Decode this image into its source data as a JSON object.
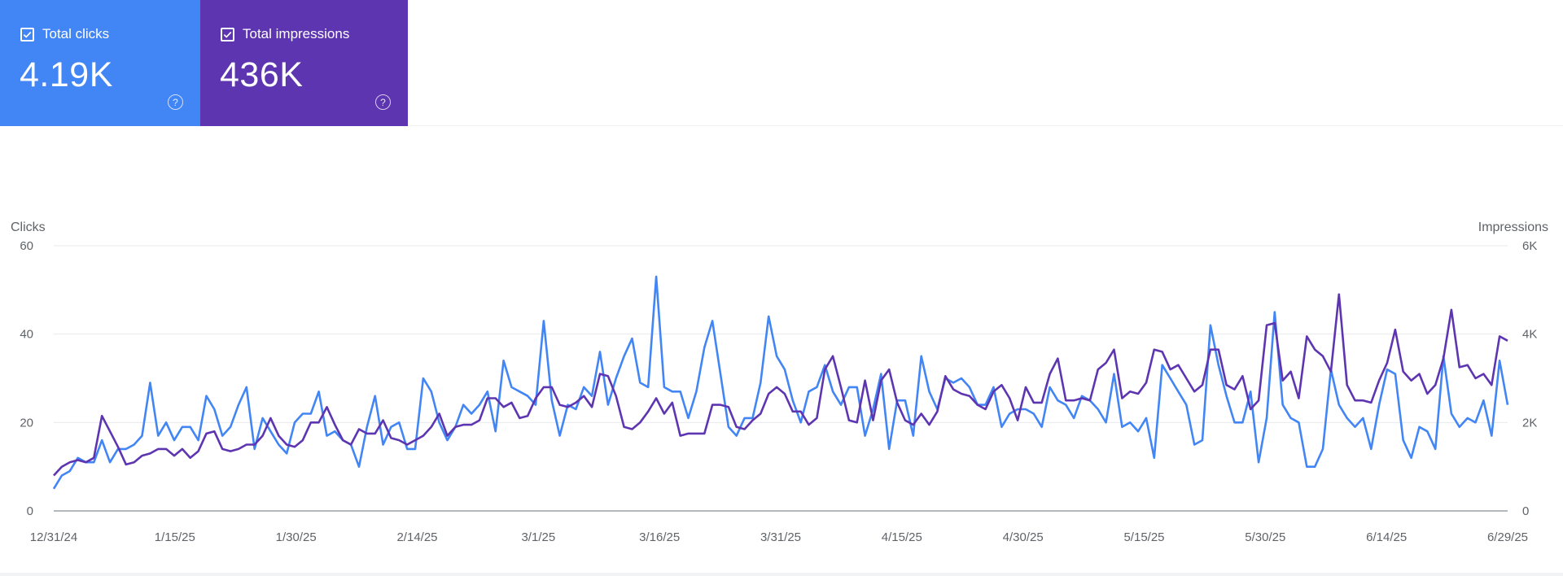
{
  "cards": {
    "clicks": {
      "label": "Total clicks",
      "value": "4.19K",
      "color": "#4285f4",
      "help_icon": "help-circle-icon"
    },
    "impressions": {
      "label": "Total impressions",
      "value": "436K",
      "color": "#5e35b1",
      "help_icon": "help-circle-icon"
    }
  },
  "chart_data": {
    "type": "line",
    "title": "",
    "xlabel": "",
    "ylabel_left": "Clicks",
    "ylabel_right": "Impressions",
    "y_left_ticks": [
      "0",
      "20",
      "40",
      "60"
    ],
    "y_right_ticks": [
      "0",
      "2K",
      "4K",
      "6K"
    ],
    "ylim_left": [
      0,
      60
    ],
    "ylim_right": [
      0,
      6000
    ],
    "x_tick_labels": [
      "12/31/24",
      "1/15/25",
      "1/30/25",
      "2/14/25",
      "3/1/25",
      "3/16/25",
      "3/31/25",
      "4/15/25",
      "4/30/25",
      "5/15/25",
      "5/30/25",
      "6/14/25",
      "6/29/25"
    ],
    "x_start": "12/31/24",
    "x_end": "6/29/25",
    "grid": true,
    "series": [
      {
        "name": "Clicks",
        "axis": "left",
        "color": "#4285f4",
        "values": [
          5,
          8,
          9,
          12,
          11,
          11,
          16,
          11,
          14,
          14,
          15,
          17,
          29,
          17,
          20,
          16,
          19,
          19,
          16,
          26,
          23,
          17,
          19,
          24,
          28,
          14,
          21,
          18,
          15,
          13,
          20,
          22,
          22,
          27,
          17,
          18,
          16,
          15,
          10,
          19,
          26,
          15,
          19,
          20,
          14,
          14,
          30,
          27,
          20,
          16,
          19,
          24,
          22,
          24,
          27,
          18,
          34,
          28,
          27,
          26,
          24,
          43,
          25,
          17,
          24,
          23,
          28,
          26,
          36,
          24,
          30,
          35,
          39,
          29,
          28,
          53,
          28,
          27,
          27,
          21,
          27,
          37,
          43,
          31,
          19,
          17,
          21,
          21,
          29,
          44,
          35,
          32,
          25,
          20,
          27,
          28,
          33,
          27,
          24,
          28,
          28,
          17,
          23,
          31,
          14,
          25,
          25,
          17,
          35,
          27,
          23,
          30,
          29,
          30,
          28,
          24,
          24,
          28,
          19,
          22,
          23,
          23,
          22,
          19,
          28,
          25,
          24,
          21,
          26,
          25,
          23,
          20,
          31,
          19,
          20,
          18,
          21,
          12,
          33,
          30,
          27,
          24,
          15,
          16,
          42,
          33,
          26,
          20,
          20,
          27,
          11,
          21,
          45,
          24,
          21,
          20,
          10,
          10,
          14,
          32,
          24,
          21,
          19,
          21,
          14,
          24,
          32,
          31,
          16,
          12,
          19,
          18,
          14,
          35,
          22,
          19,
          21,
          20,
          25,
          17,
          34,
          24
        ]
      },
      {
        "name": "Impressions",
        "axis": "right",
        "color": "#5e35b1",
        "values": [
          800,
          1000,
          1100,
          1150,
          1100,
          1200,
          2150,
          1800,
          1450,
          1050,
          1100,
          1250,
          1300,
          1400,
          1400,
          1250,
          1400,
          1200,
          1350,
          1750,
          1800,
          1400,
          1350,
          1400,
          1500,
          1500,
          1700,
          2100,
          1700,
          1500,
          1450,
          1600,
          2000,
          2000,
          2350,
          1950,
          1600,
          1500,
          1850,
          1750,
          1750,
          2050,
          1650,
          1600,
          1500,
          1600,
          1700,
          1900,
          2200,
          1700,
          1900,
          1950,
          1950,
          2050,
          2550,
          2550,
          2350,
          2450,
          2100,
          2150,
          2550,
          2800,
          2800,
          2400,
          2350,
          2450,
          2600,
          2350,
          3100,
          3050,
          2600,
          1900,
          1850,
          2000,
          2250,
          2550,
          2200,
          2450,
          1700,
          1750,
          1750,
          1750,
          2400,
          2400,
          2350,
          1900,
          1850,
          2050,
          2200,
          2650,
          2800,
          2650,
          2250,
          2250,
          1950,
          2100,
          3200,
          3500,
          2800,
          2050,
          2000,
          2950,
          2050,
          2950,
          3200,
          2450,
          2050,
          1950,
          2200,
          1950,
          2250,
          3050,
          2750,
          2650,
          2600,
          2400,
          2300,
          2700,
          2850,
          2550,
          2050,
          2800,
          2450,
          2450,
          3100,
          3450,
          2500,
          2500,
          2550,
          2500,
          3200,
          3350,
          3650,
          2550,
          2700,
          2650,
          2900,
          3650,
          3600,
          3200,
          3300,
          3000,
          2700,
          2850,
          3650,
          3650,
          2850,
          2750,
          3050,
          2300,
          2500,
          4200,
          4250,
          2950,
          3150,
          2550,
          3950,
          3650,
          3500,
          3150,
          4900,
          2850,
          2500,
          2500,
          2450,
          2950,
          3350,
          4100,
          3150,
          2950,
          3100,
          2650,
          2850,
          3450,
          4550,
          3250,
          3300,
          3000,
          3100,
          2850,
          3950,
          3850
        ]
      }
    ]
  }
}
